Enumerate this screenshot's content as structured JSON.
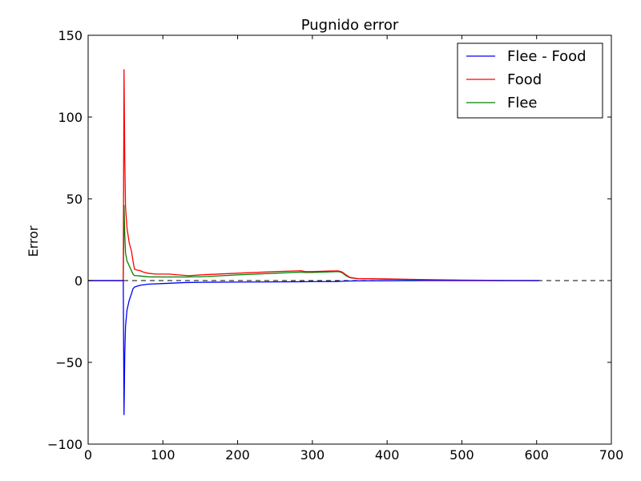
{
  "chart_data": {
    "type": "line",
    "title": "Pugnido error",
    "xlabel": "",
    "ylabel": "Error",
    "xlim": [
      0,
      700
    ],
    "ylim": [
      -100,
      150
    ],
    "xticks": [
      0,
      100,
      200,
      300,
      400,
      500,
      600,
      700
    ],
    "xtick_labels": [
      "0",
      "100",
      "200",
      "300",
      "400",
      "500",
      "600",
      "700"
    ],
    "yticks": [
      -100,
      -50,
      0,
      50,
      100,
      150
    ],
    "ytick_labels": [
      "−100",
      "−50",
      "0",
      "50",
      "100",
      "150"
    ],
    "grid": false,
    "legend_position": "top-right",
    "reference_line": {
      "y": 0,
      "style": "dashed",
      "color": "#000000"
    },
    "series": [
      {
        "name": "Flee - Food",
        "color": "#0000ff",
        "x": [
          0,
          47,
          48,
          49,
          50,
          52,
          55,
          58,
          60,
          62,
          65,
          70,
          80,
          100,
          130,
          160,
          200,
          250,
          285,
          300,
          330,
          345,
          360,
          400,
          450,
          500,
          550,
          604
        ],
        "y": [
          0,
          0,
          -82,
          -45,
          -28,
          -18,
          -12,
          -8,
          -5,
          -4,
          -3.5,
          -2.8,
          -2.2,
          -1.8,
          -1.2,
          -1.0,
          -0.9,
          -0.8,
          -0.7,
          -0.6,
          -0.6,
          -0.3,
          -0.2,
          -0.1,
          0,
          0,
          0,
          0
        ]
      },
      {
        "name": "Food",
        "color": "#ff0000",
        "x": [
          0,
          47,
          48,
          49,
          50,
          52,
          55,
          58,
          60,
          62,
          65,
          70,
          75,
          80,
          90,
          100,
          108,
          120,
          135,
          150,
          200,
          250,
          285,
          290,
          300,
          320,
          335,
          340,
          345,
          350,
          360,
          400,
          450,
          500,
          550,
          604
        ],
        "y": [
          0,
          0,
          129,
          75,
          45,
          32,
          23,
          18,
          12,
          7,
          6.5,
          6,
          5,
          4.5,
          4,
          4,
          4,
          3.5,
          3,
          3.5,
          4.5,
          5.5,
          6,
          5.5,
          5.5,
          5.8,
          5.9,
          5.2,
          3.5,
          2,
          1.2,
          1,
          0.6,
          0.3,
          0.1,
          0
        ]
      },
      {
        "name": "Flee",
        "color": "#008000",
        "x": [
          0,
          47,
          48,
          49,
          50,
          52,
          55,
          58,
          60,
          62,
          65,
          70,
          80,
          100,
          130,
          160,
          200,
          250,
          285,
          290,
          300,
          320,
          335,
          340,
          345,
          350,
          360,
          400,
          450,
          500,
          550,
          604
        ],
        "y": [
          0,
          0,
          46,
          28,
          17,
          12,
          9,
          6,
          4,
          3,
          3,
          2.8,
          2.3,
          2.2,
          2.2,
          2.5,
          3.5,
          4.5,
          5.2,
          5,
          5,
          5.3,
          5.5,
          4.8,
          3,
          1.8,
          1.2,
          0.8,
          0.5,
          0.2,
          0,
          0
        ]
      }
    ]
  }
}
